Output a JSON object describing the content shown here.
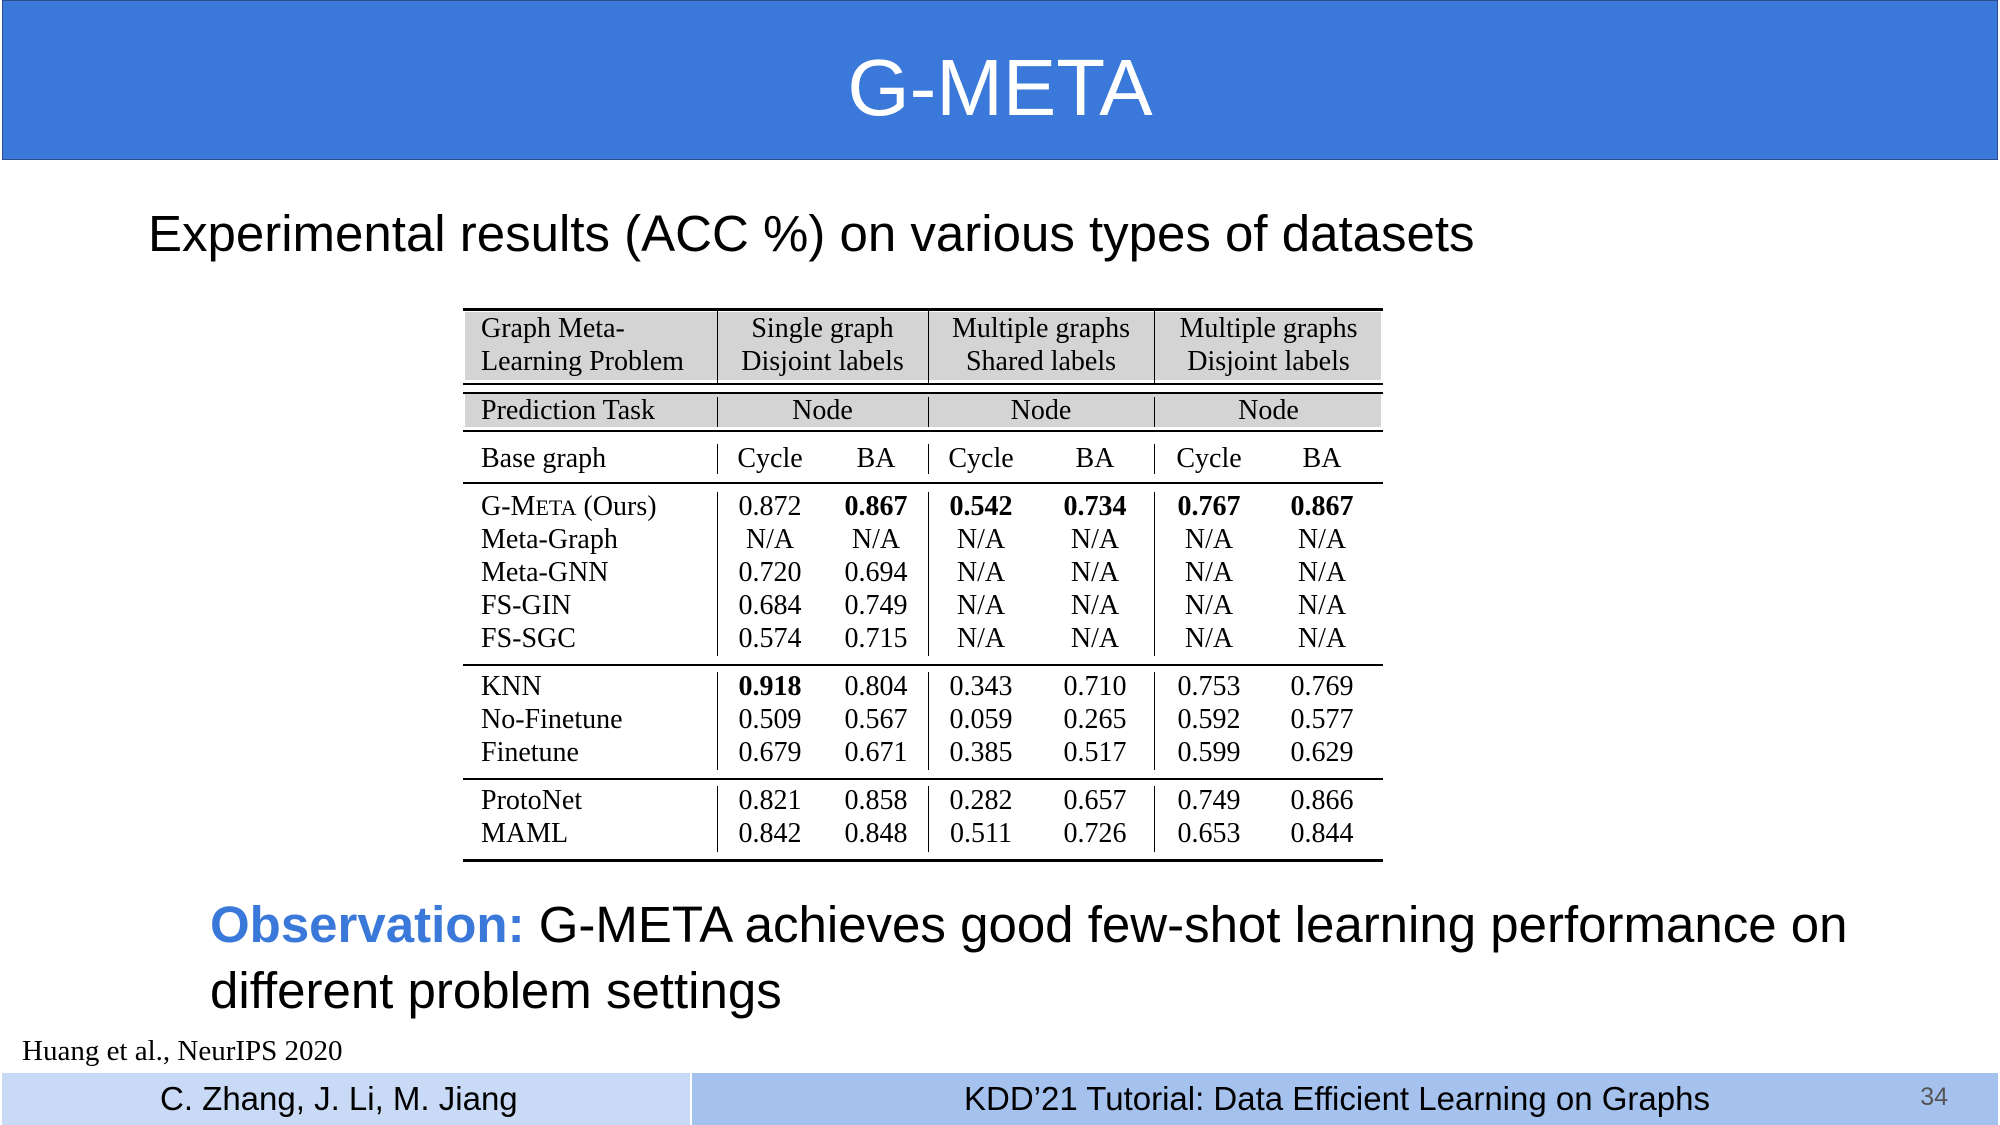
{
  "slide": {
    "title": "G-META",
    "subtitle": "Experimental results (ACC %) on various types of datasets",
    "observation_label": "Observation:",
    "observation_text": " G-META achieves good few-shot learning performance on different problem settings",
    "citation": "Huang et al., NeurIPS 2020",
    "footer_authors": "C. Zhang, J. Li, M. Jiang",
    "footer_event": "KDD’21 Tutorial: Data Efficient Learning on Graphs",
    "page_number": "34",
    "accent_color": "#3a78d9"
  },
  "table": {
    "header": {
      "problem_line1": "Graph Meta-",
      "problem_line2": "Learning Problem",
      "groups": [
        {
          "line1": "Single graph",
          "line2": "Disjoint labels"
        },
        {
          "line1": "Multiple graphs",
          "line2": "Shared labels"
        },
        {
          "line1": "Multiple graphs",
          "line2": "Disjoint labels"
        }
      ]
    },
    "task_row": {
      "label": "Prediction Task",
      "values": [
        "Node",
        "Node",
        "Node"
      ]
    },
    "base_row": {
      "label": "Base graph",
      "values": [
        "Cycle",
        "BA",
        "Cycle",
        "BA",
        "Cycle",
        "BA"
      ]
    },
    "gmeta_row": {
      "label_g": "G-M",
      "label_eta": "ETA",
      "label_ours": " (Ours)",
      "values": [
        "0.872",
        "0.867",
        "0.542",
        "0.734",
        "0.767",
        "0.867"
      ]
    },
    "rows": [
      {
        "label": "Meta-Graph",
        "values": [
          "N/A",
          "N/A",
          "N/A",
          "N/A",
          "N/A",
          "N/A"
        ]
      },
      {
        "label": "Meta-GNN",
        "values": [
          "0.720",
          "0.694",
          "N/A",
          "N/A",
          "N/A",
          "N/A"
        ]
      },
      {
        "label": "FS-GIN",
        "values": [
          "0.684",
          "0.749",
          "N/A",
          "N/A",
          "N/A",
          "N/A"
        ]
      },
      {
        "label": "FS-SGC",
        "values": [
          "0.574",
          "0.715",
          "N/A",
          "N/A",
          "N/A",
          "N/A"
        ]
      },
      {
        "label": "KNN",
        "values": [
          "0.918",
          "0.804",
          "0.343",
          "0.710",
          "0.753",
          "0.769"
        ]
      },
      {
        "label": "No-Finetune",
        "values": [
          "0.509",
          "0.567",
          "0.059",
          "0.265",
          "0.592",
          "0.577"
        ]
      },
      {
        "label": "Finetune",
        "values": [
          "0.679",
          "0.671",
          "0.385",
          "0.517",
          "0.599",
          "0.629"
        ]
      },
      {
        "label": "ProtoNet",
        "values": [
          "0.821",
          "0.858",
          "0.282",
          "0.657",
          "0.749",
          "0.866"
        ]
      },
      {
        "label": "MAML",
        "values": [
          "0.842",
          "0.848",
          "0.511",
          "0.726",
          "0.653",
          "0.844"
        ]
      }
    ]
  }
}
